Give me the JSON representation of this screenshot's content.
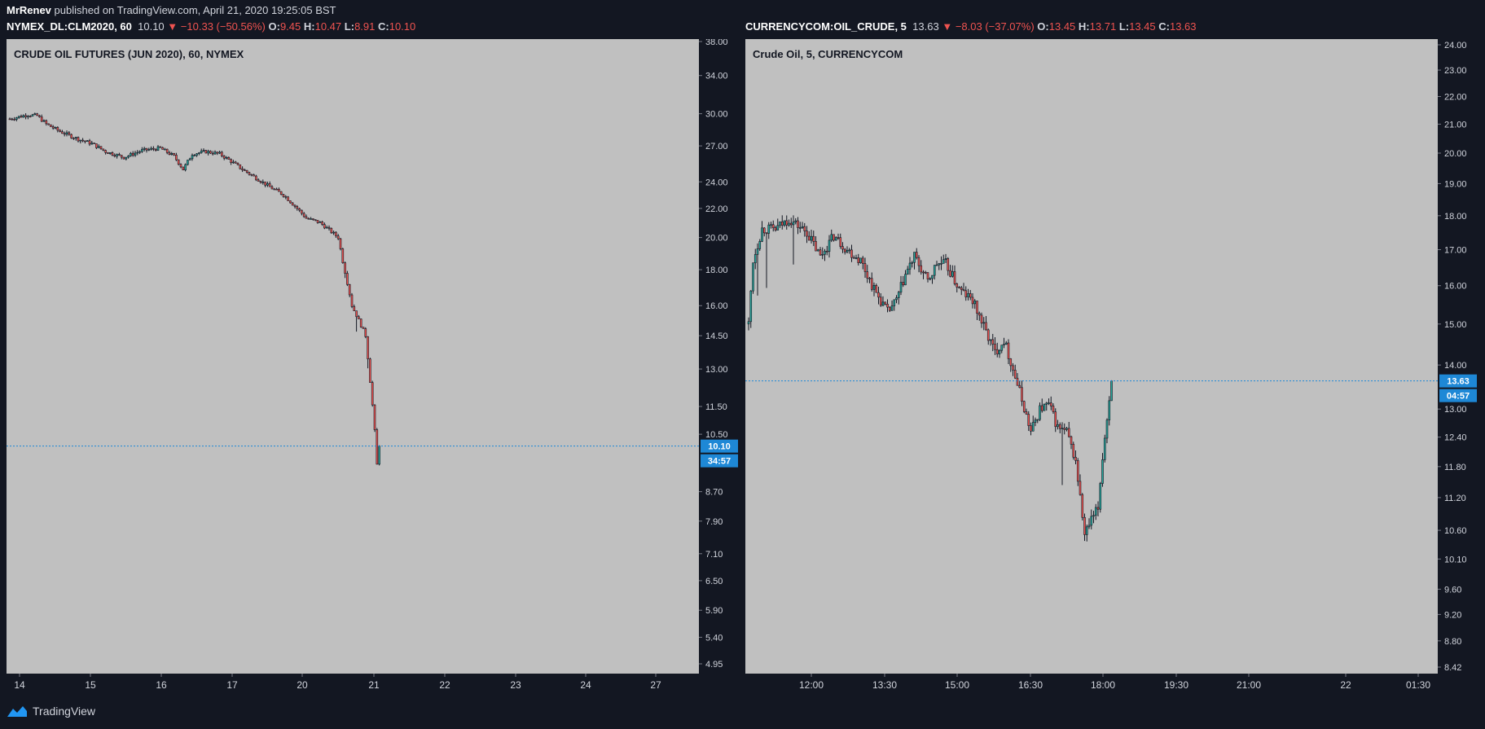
{
  "header": {
    "author": "MrRenev",
    "published_text": "published on TradingView.com, April 21, 2020 19:25:05 BST"
  },
  "footer": {
    "brand": "TradingView"
  },
  "colors": {
    "up": "#26a69a",
    "down": "#ef5350",
    "accent": "#1e88d6",
    "candle": "#131722"
  },
  "left": {
    "symbol": "NYMEX_DL:CLM2020, 60",
    "last": "10.10",
    "change": "−10.33 (−50.56%)",
    "o": "9.45",
    "h": "10.47",
    "l": "8.91",
    "c": "10.10",
    "title": "CRUDE OIL FUTURES (JUN 2020), 60, NYMEX",
    "price_tag": "10.10",
    "countdown": "34:57"
  },
  "right": {
    "symbol": "CURRENCYCOM:OIL_CRUDE, 5",
    "last": "13.63",
    "change": "−8.03 (−37.07%)",
    "o": "13.45",
    "h": "13.71",
    "l": "13.45",
    "c": "13.63",
    "title": "Crude Oil, 5, CURRENCYCOM",
    "price_tag": "13.63",
    "countdown": "04:57"
  },
  "chart_data": [
    {
      "type": "candlestick",
      "title": "CRUDE OIL FUTURES (JUN 2020), 60, NYMEX",
      "y_scale": "log",
      "y_ticks": [
        38.0,
        34.0,
        30.0,
        27.0,
        24.0,
        22.0,
        20.0,
        18.0,
        16.0,
        14.5,
        13.0,
        11.5,
        10.5,
        8.7,
        7.9,
        7.1,
        6.5,
        5.9,
        5.4,
        4.95
      ],
      "y_tick_labels": [
        "38.00",
        "34.00",
        "30.00",
        "27.00",
        "24.00",
        "22.00",
        "20.00",
        "18.00",
        "16.00",
        "14.50",
        "13.00",
        "11.50",
        "10.50",
        "8.70",
        "7.90",
        "7.10",
        "6.50",
        "5.90",
        "5.40",
        "4.95"
      ],
      "x_tick_labels": [
        "14",
        "15",
        "16",
        "17",
        "20",
        "21",
        "22",
        "23",
        "24",
        "27"
      ],
      "last_price": 10.1,
      "waypoints": [
        [
          0,
          29.5
        ],
        [
          8,
          29.9
        ],
        [
          12,
          29.8
        ],
        [
          16,
          29.0
        ],
        [
          22,
          28.3
        ],
        [
          30,
          27.6
        ],
        [
          36,
          27.2
        ],
        [
          42,
          26.5
        ],
        [
          50,
          26.0
        ],
        [
          58,
          26.6
        ],
        [
          66,
          26.8
        ],
        [
          72,
          26.1
        ],
        [
          76,
          25.0
        ],
        [
          80,
          26.3
        ],
        [
          86,
          26.5
        ],
        [
          92,
          26.3
        ],
        [
          96,
          25.8
        ],
        [
          102,
          25.0
        ],
        [
          108,
          24.3
        ],
        [
          114,
          23.6
        ],
        [
          120,
          23.0
        ],
        [
          126,
          22.0
        ],
        [
          130,
          21.3
        ],
        [
          136,
          21.0
        ],
        [
          140,
          20.5
        ],
        [
          144,
          20.0
        ],
        [
          146,
          18.5
        ],
        [
          150,
          16.0
        ],
        [
          156,
          14.5
        ],
        [
          158,
          12.5
        ],
        [
          160,
          10.6
        ],
        [
          161,
          9.5
        ],
        [
          162,
          10.1
        ]
      ]
    },
    {
      "type": "candlestick",
      "title": "Crude Oil, 5, CURRENCYCOM",
      "y_scale": "log",
      "y_ticks": [
        24.0,
        23.0,
        22.0,
        21.0,
        20.0,
        19.0,
        18.0,
        17.0,
        16.0,
        15.0,
        14.0,
        13.0,
        12.4,
        11.8,
        11.2,
        10.6,
        10.1,
        9.6,
        9.2,
        8.8,
        8.42
      ],
      "y_tick_labels": [
        "24.00",
        "23.00",
        "22.00",
        "21.00",
        "20.00",
        "19.00",
        "18.00",
        "17.00",
        "16.00",
        "15.00",
        "14.00",
        "13.00",
        "12.40",
        "11.80",
        "11.20",
        "10.60",
        "10.10",
        "9.60",
        "9.20",
        "8.80",
        "8.42"
      ],
      "x_tick_labels": [
        "12:00",
        "13:30",
        "15:00",
        "16:30",
        "18:00",
        "19:30",
        "21:00",
        "22",
        "01:30"
      ],
      "last_price": 13.63,
      "waypoints": [
        [
          0,
          15.0
        ],
        [
          2,
          16.7
        ],
        [
          6,
          17.6
        ],
        [
          12,
          17.6
        ],
        [
          18,
          17.9
        ],
        [
          26,
          17.5
        ],
        [
          32,
          16.8
        ],
        [
          38,
          17.4
        ],
        [
          44,
          17.0
        ],
        [
          50,
          16.7
        ],
        [
          56,
          15.9
        ],
        [
          62,
          15.3
        ],
        [
          66,
          15.6
        ],
        [
          70,
          16.3
        ],
        [
          74,
          16.8
        ],
        [
          80,
          16.1
        ],
        [
          84,
          16.6
        ],
        [
          88,
          16.6
        ],
        [
          94,
          15.9
        ],
        [
          100,
          15.6
        ],
        [
          106,
          14.8
        ],
        [
          110,
          14.3
        ],
        [
          114,
          14.6
        ],
        [
          118,
          13.9
        ],
        [
          122,
          13.2
        ],
        [
          126,
          12.5
        ],
        [
          130,
          13.0
        ],
        [
          134,
          13.1
        ],
        [
          138,
          12.6
        ],
        [
          142,
          12.5
        ],
        [
          146,
          11.9
        ],
        [
          150,
          10.5
        ],
        [
          152,
          10.7
        ],
        [
          156,
          11.0
        ],
        [
          158,
          12.0
        ],
        [
          162,
          13.6
        ]
      ]
    }
  ]
}
